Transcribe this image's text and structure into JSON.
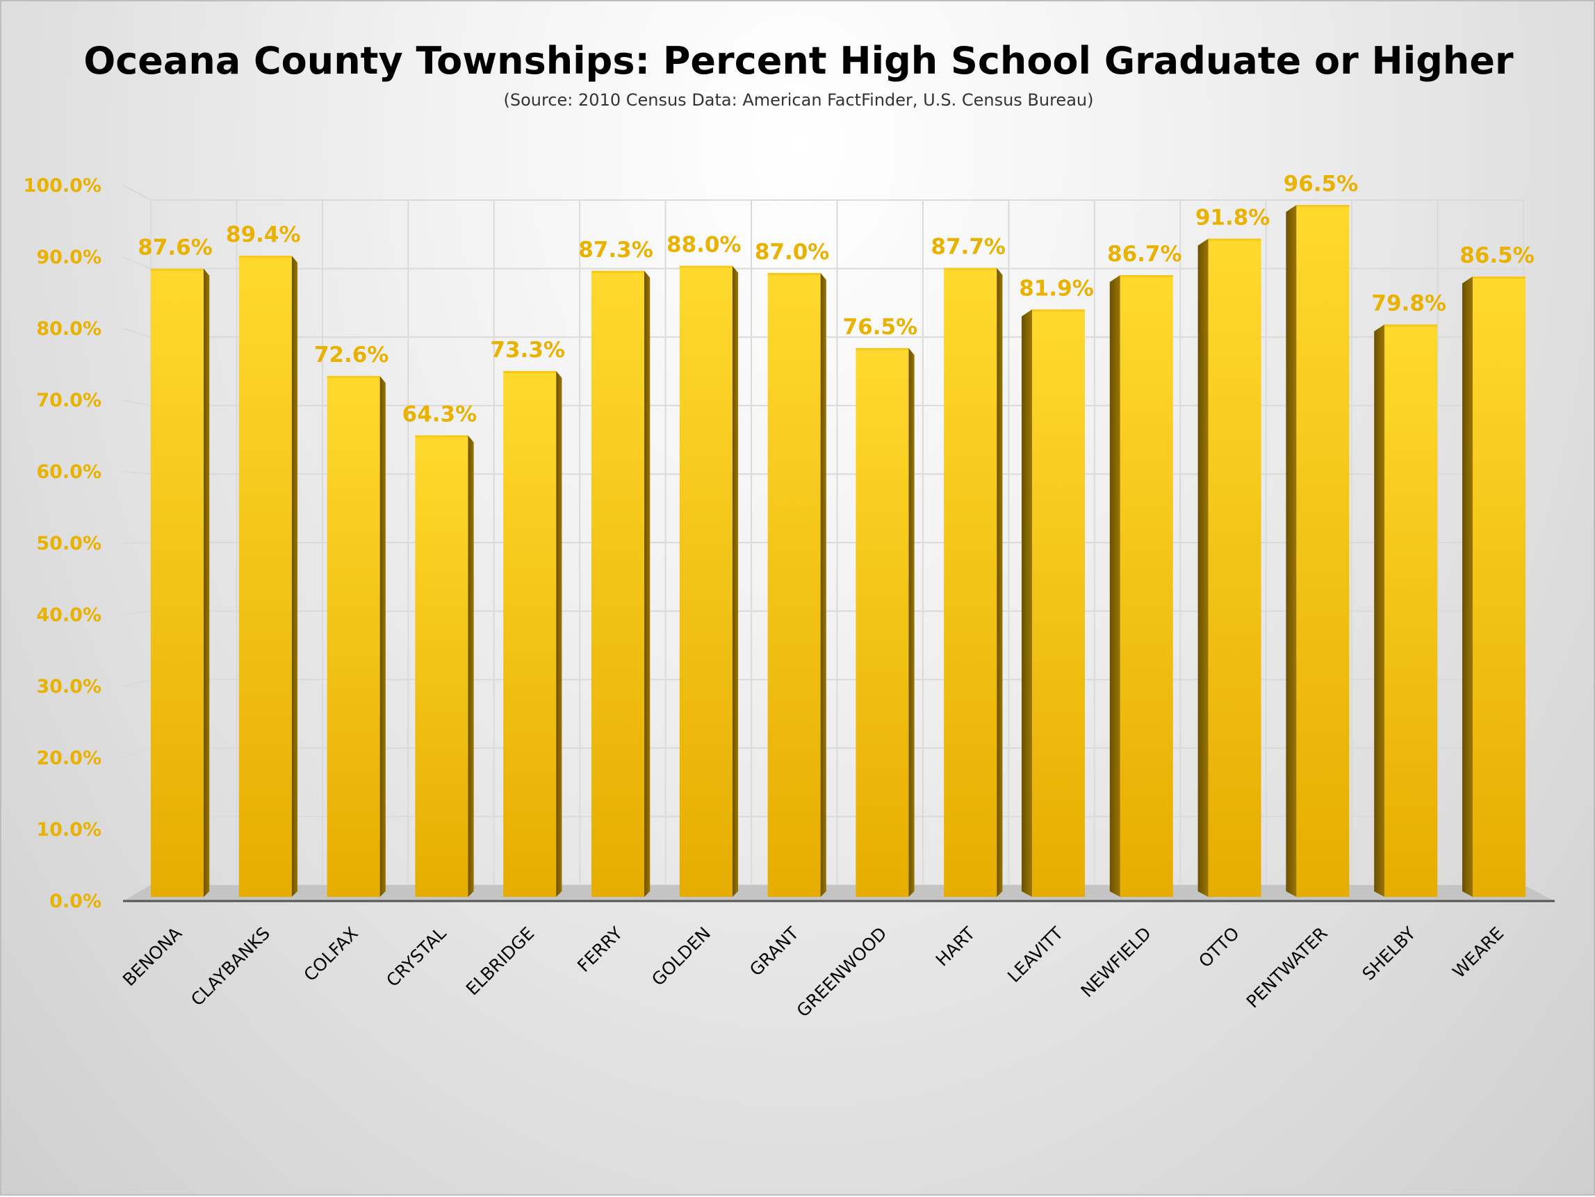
{
  "chart_data": {
    "type": "bar",
    "title": "Oceana County Townships: Percent High School Graduate or Higher",
    "subtitle": "(Source: 2010 Census Data: American FactFinder, U.S. Census Bureau)",
    "xlabel": "",
    "ylabel": "",
    "ylim": [
      0,
      100
    ],
    "yticks": [
      0,
      10,
      20,
      30,
      40,
      50,
      60,
      70,
      80,
      90,
      100
    ],
    "ytick_labels": [
      "0.0%",
      "10.0%",
      "20.0%",
      "30.0%",
      "40.0%",
      "50.0%",
      "60.0%",
      "70.0%",
      "80.0%",
      "90.0%",
      "100.0%"
    ],
    "grid": true,
    "categories": [
      "BENONA",
      "CLAYBANKS",
      "COLFAX",
      "CRYSTAL",
      "ELBRIDGE",
      "FERRY",
      "GOLDEN",
      "GRANT",
      "GREENWOOD",
      "HART",
      "LEAVITT",
      "NEWFIELD",
      "OTTO",
      "PENTWATER",
      "SHELBY",
      "WEARE"
    ],
    "values": [
      87.6,
      89.4,
      72.6,
      64.3,
      73.3,
      87.3,
      88.0,
      87.0,
      76.5,
      87.7,
      81.9,
      86.7,
      91.8,
      96.5,
      79.8,
      86.5
    ],
    "data_labels": [
      "87.6%",
      "89.4%",
      "72.6%",
      "64.3%",
      "73.3%",
      "87.3%",
      "88.0%",
      "87.0%",
      "76.5%",
      "87.7%",
      "81.9%",
      "86.7%",
      "91.8%",
      "96.5%",
      "79.8%",
      "86.5%"
    ],
    "colors": {
      "bar": "#f2b705",
      "bar_light": "#ffd92e",
      "bar_dark": "#e3a800",
      "bar_side": "#8a6a00",
      "label": "#e9b100",
      "floor": "#c4c4c4"
    }
  }
}
